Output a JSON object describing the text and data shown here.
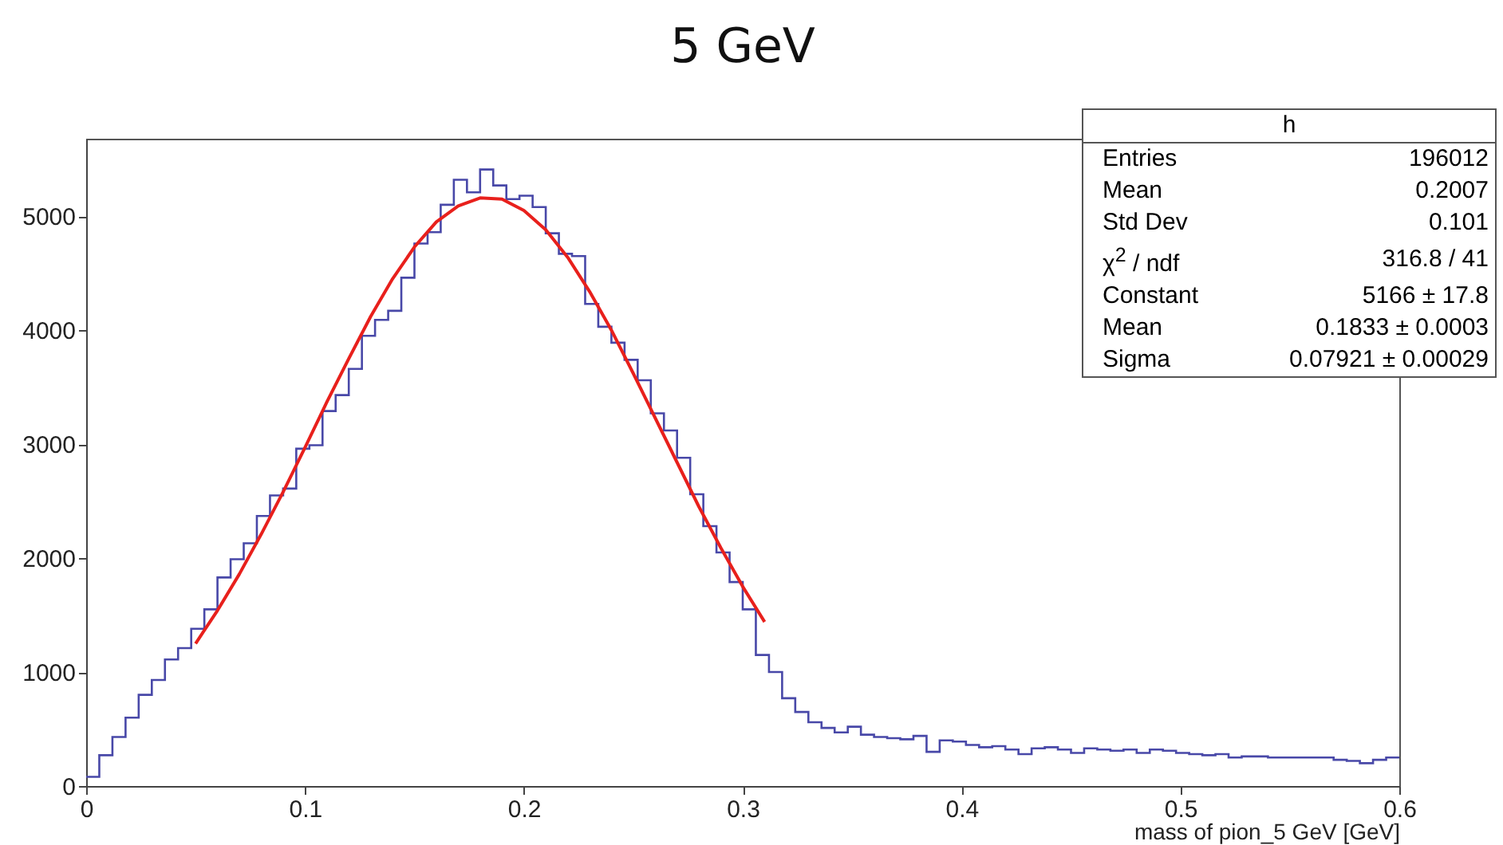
{
  "chart_data": {
    "type": "histogram",
    "title": "5 GeV",
    "xlabel": "mass of pion_5 GeV [GeV]",
    "bins": [
      0,
      0.006,
      0.012,
      0.018,
      0.024,
      0.03,
      0.036,
      0.042,
      0.048,
      0.054,
      0.06,
      0.066,
      0.072,
      0.078,
      0.084,
      0.09,
      0.096,
      0.102,
      0.108,
      0.114,
      0.12,
      0.126,
      0.132,
      0.138,
      0.144,
      0.15,
      0.156,
      0.162,
      0.168,
      0.174,
      0.18,
      0.186,
      0.192,
      0.198,
      0.204,
      0.21,
      0.216,
      0.222,
      0.228,
      0.234,
      0.24,
      0.246,
      0.252,
      0.258,
      0.264,
      0.27,
      0.276,
      0.282,
      0.288,
      0.294,
      0.3,
      0.306,
      0.312,
      0.318,
      0.324,
      0.33,
      0.336,
      0.342,
      0.348,
      0.354,
      0.36,
      0.366,
      0.372,
      0.378,
      0.384,
      0.39,
      0.396,
      0.402,
      0.408,
      0.414,
      0.42,
      0.426,
      0.432,
      0.438,
      0.444,
      0.45,
      0.456,
      0.462,
      0.468,
      0.474,
      0.48,
      0.486,
      0.492,
      0.498,
      0.504,
      0.51,
      0.516,
      0.522,
      0.528,
      0.534,
      0.54,
      0.546,
      0.552,
      0.558,
      0.564,
      0.57,
      0.576,
      0.582,
      0.588,
      0.594,
      0.6
    ],
    "series": [
      {
        "color": "#4848a8",
        "values": [
          80,
          270,
          430,
          600,
          800,
          930,
          1110,
          1210,
          1380,
          1550,
          1830,
          1990,
          2130,
          2370,
          2550,
          2610,
          2960,
          2990,
          3290,
          3430,
          3660,
          3950,
          4090,
          4170,
          4460,
          4760,
          4860,
          5100,
          5320,
          5210,
          5410,
          5270,
          5150,
          5180,
          5080,
          4850,
          4670,
          4650,
          4230,
          4030,
          3890,
          3740,
          3560,
          3270,
          3120,
          2880,
          2560,
          2280,
          2050,
          1790,
          1550,
          1150,
          1000,
          770,
          650,
          560,
          510,
          470,
          520,
          450,
          430,
          420,
          410,
          440,
          300,
          400,
          390,
          360,
          340,
          350,
          320,
          280,
          330,
          340,
          320,
          290,
          330,
          320,
          310,
          320,
          290,
          320,
          310,
          290,
          280,
          270,
          280,
          250,
          260,
          260,
          250,
          250,
          250,
          250,
          250,
          230,
          220,
          200,
          230,
          250
        ]
      },
      {
        "type": "line",
        "color": "#e8201c",
        "x": [
          0.05,
          0.06,
          0.07,
          0.08,
          0.09,
          0.1,
          0.11,
          0.12,
          0.13,
          0.14,
          0.15,
          0.16,
          0.17,
          0.18,
          0.19,
          0.2,
          0.21,
          0.22,
          0.23,
          0.24,
          0.25,
          0.26,
          0.27,
          0.28,
          0.29,
          0.3,
          0.31
        ],
        "values": [
          1250,
          1540,
          1860,
          2210,
          2580,
          2970,
          3370,
          3750,
          4120,
          4450,
          4730,
          4950,
          5090,
          5160,
          5150,
          5050,
          4880,
          4640,
          4340,
          4000,
          3620,
          3230,
          2840,
          2450,
          2090,
          1750,
          1440
        ]
      }
    ],
    "xlim": [
      0,
      0.6
    ],
    "xticks": [
      0,
      0.1,
      0.2,
      0.3,
      0.4,
      0.5,
      0.6
    ],
    "ylim": [
      0,
      5680
    ],
    "yticks": [
      0,
      1000,
      2000,
      3000,
      4000,
      5000
    ],
    "annotations": [
      "h",
      "Entries",
      "196012",
      "Mean",
      "0.2007",
      "Std Dev",
      "0.101",
      "χ$^{2}$ / ndf",
      "316.8 / 41",
      "Constant",
      "5166 ± 17.8",
      "Mean",
      "0.1833 ± 0.0003",
      "Sigma",
      "0.07921 ± 0.00029"
    ]
  }
}
